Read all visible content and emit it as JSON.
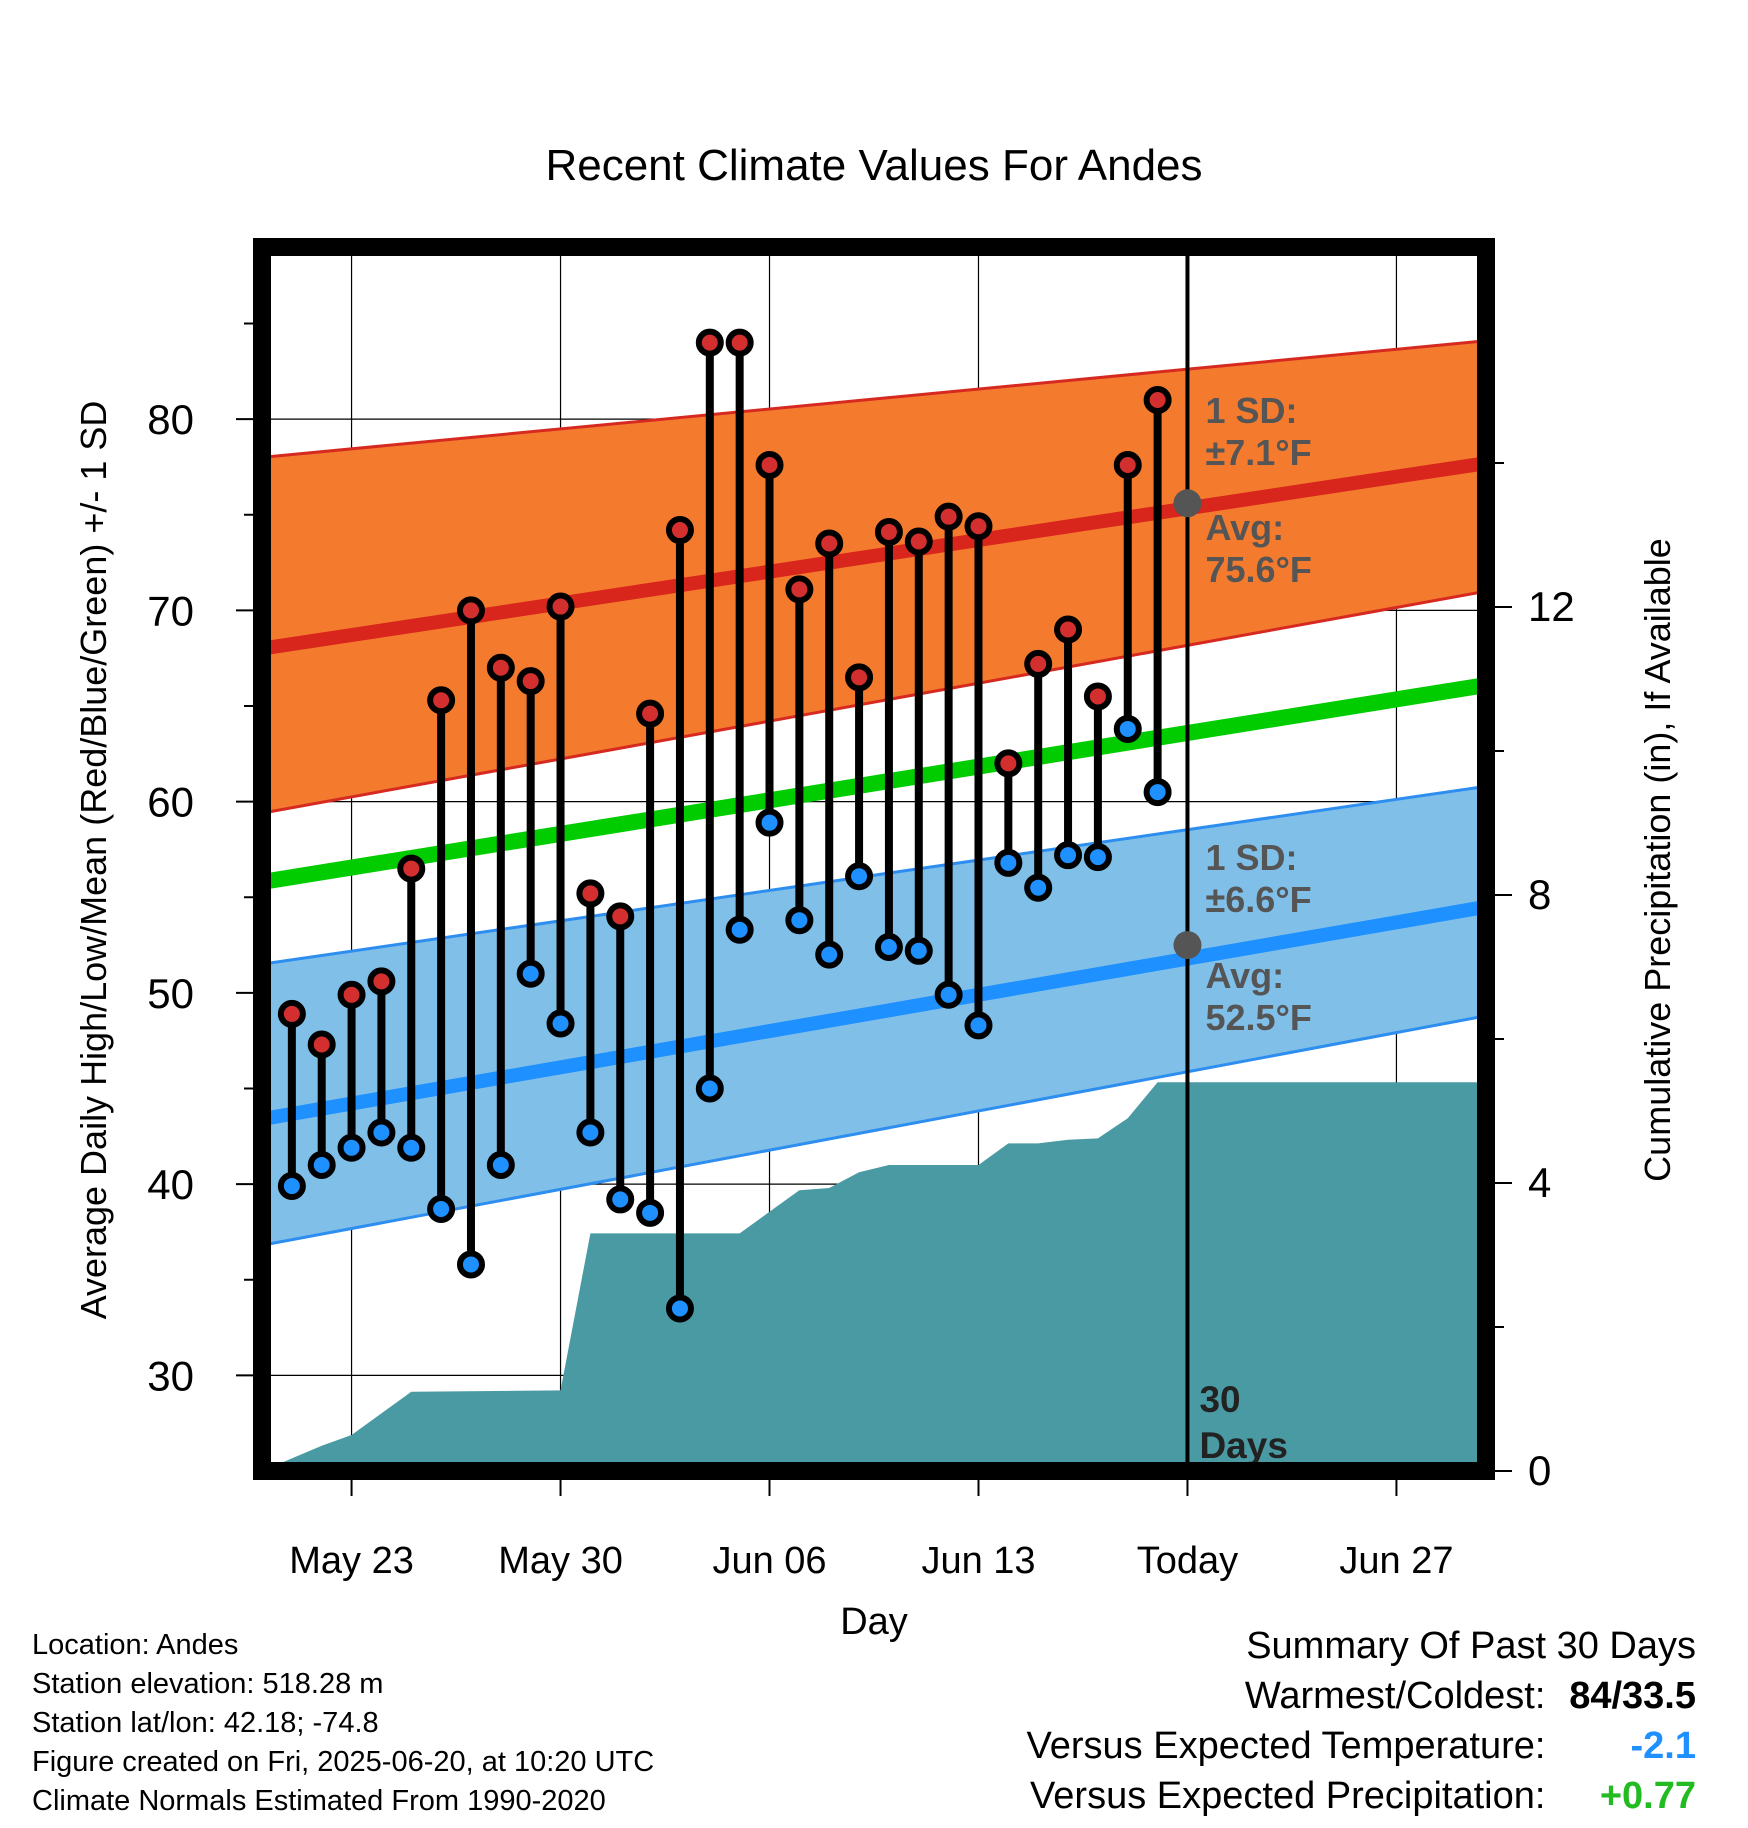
{
  "chart_data": {
    "type": "line",
    "title": "Recent Climate Values For Andes",
    "xlabel": "Day",
    "ylabel": "Average Daily High/Low/Mean (Red/Blue/Green) +/- 1 SD",
    "y2label": "Cumulative Precipitation (in), If Available",
    "ylim": [
      25,
      89
    ],
    "y2lim": [
      0,
      17
    ],
    "yticks": [
      30,
      40,
      50,
      60,
      70,
      80
    ],
    "y2ticks": [
      0,
      4,
      8,
      12
    ],
    "xlim": [
      "2025-05-20",
      "2025-06-30"
    ],
    "xticks": [
      {
        "date": "2025-05-23",
        "label": "May 23"
      },
      {
        "date": "2025-05-30",
        "label": "May 30"
      },
      {
        "date": "2025-06-06",
        "label": "Jun 06"
      },
      {
        "date": "2025-06-13",
        "label": "Jun 13"
      },
      {
        "date": "2025-06-20",
        "label": "Today"
      },
      {
        "date": "2025-06-27",
        "label": "Jun 27"
      }
    ],
    "today": "2025-06-20",
    "today_label": "30 Days",
    "normals": {
      "start": "2025-05-20",
      "end": "2025-06-30",
      "high_avg": [
        68.0,
        77.7
      ],
      "high_upper": [
        78.0,
        84.1
      ],
      "high_lower": [
        59.4,
        71.0
      ],
      "low_avg": [
        43.4,
        54.5
      ],
      "low_upper": [
        51.5,
        60.8
      ],
      "low_lower": [
        36.8,
        48.8
      ],
      "mean_avg": [
        55.8,
        66.1
      ]
    },
    "annotations": [
      {
        "id": "high_sd",
        "text": [
          "1 SD:",
          "±7.1°F"
        ]
      },
      {
        "id": "high_avg",
        "text": [
          "Avg:",
          "75.6°F"
        ],
        "value": 75.6
      },
      {
        "id": "low_sd",
        "text": [
          "1 SD:",
          "±6.6°F"
        ]
      },
      {
        "id": "low_avg",
        "text": [
          "Avg:",
          "52.5°F"
        ],
        "value": 52.5
      }
    ],
    "daily": {
      "dates": [
        "2025-05-21",
        "2025-05-22",
        "2025-05-23",
        "2025-05-24",
        "2025-05-25",
        "2025-05-26",
        "2025-05-27",
        "2025-05-28",
        "2025-05-29",
        "2025-05-30",
        "2025-05-31",
        "2025-06-01",
        "2025-06-02",
        "2025-06-03",
        "2025-06-04",
        "2025-06-05",
        "2025-06-06",
        "2025-06-07",
        "2025-06-08",
        "2025-06-09",
        "2025-06-10",
        "2025-06-11",
        "2025-06-12",
        "2025-06-13",
        "2025-06-14",
        "2025-06-15",
        "2025-06-16",
        "2025-06-17",
        "2025-06-18",
        "2025-06-19"
      ],
      "high": [
        48.9,
        47.3,
        49.9,
        50.6,
        56.5,
        65.3,
        70.0,
        67.0,
        66.3,
        70.2,
        55.2,
        54.0,
        64.6,
        74.2,
        84.0,
        84.0,
        77.6,
        71.1,
        73.5,
        66.5,
        74.1,
        73.6,
        74.9,
        74.4,
        62.0,
        67.2,
        69.0,
        65.5,
        77.6,
        81.0
      ],
      "low": [
        39.9,
        41.0,
        41.9,
        42.7,
        41.9,
        38.7,
        35.8,
        41.0,
        51.0,
        48.4,
        42.7,
        39.2,
        38.5,
        33.5,
        45.0,
        53.3,
        58.9,
        53.8,
        52.0,
        56.1,
        52.4,
        52.2,
        49.9,
        48.3,
        56.8,
        55.5,
        57.2,
        57.1,
        63.8,
        60.5
      ]
    },
    "precip": {
      "x": [
        "2025-05-20",
        "2025-05-22",
        "2025-05-23",
        "2025-05-24",
        "2025-05-25",
        "2025-05-30",
        "2025-05-31",
        "2025-06-01",
        "2025-06-05",
        "2025-06-06",
        "2025-06-07",
        "2025-06-08",
        "2025-06-09",
        "2025-06-10",
        "2025-06-11",
        "2025-06-12",
        "2025-06-13",
        "2025-06-14",
        "2025-06-15",
        "2025-06-16",
        "2025-06-17",
        "2025-06-18",
        "2025-06-19",
        "2025-06-30"
      ],
      "y": [
        0,
        0.35,
        0.5,
        0.8,
        1.1,
        1.12,
        3.3,
        3.3,
        3.3,
        3.6,
        3.9,
        3.93,
        4.15,
        4.25,
        4.25,
        4.25,
        4.25,
        4.55,
        4.55,
        4.6,
        4.62,
        4.9,
        5.4,
        5.4
      ]
    },
    "colors": {
      "high_band": "#f47b2e",
      "high_line": "#d9261c",
      "high_edge": "#d62a20",
      "low_band": "#80c0e8",
      "low_line": "#1e90ff",
      "low_edge": "#2d8ef0",
      "mean_line": "#00cc00",
      "precip": "#4a9aa4",
      "high_dot": "#d32f2f",
      "low_dot": "#1e90ff",
      "avg_marker": "#555555",
      "annotation_text": "#555555"
    }
  },
  "info": {
    "location": "Location: Andes",
    "elevation": "Station elevation: 518.28 m",
    "latlon": "Station lat/lon: 42.18; -74.8",
    "created": "Figure created on Fri, 2025-06-20, at 10:20 UTC",
    "normals": "Climate Normals Estimated From 1990-2020"
  },
  "summary": {
    "title": "Summary Of Past 30 Days",
    "warmest_label": "Warmest/Coldest:",
    "warmest_value": "84/33.5",
    "temp_label": "Versus Expected Temperature:",
    "temp_value": "-2.1",
    "temp_color": "#1e90ff",
    "precip_label": "Versus Expected Precipitation:",
    "precip_value": "+0.77",
    "precip_color": "#22bb22"
  }
}
